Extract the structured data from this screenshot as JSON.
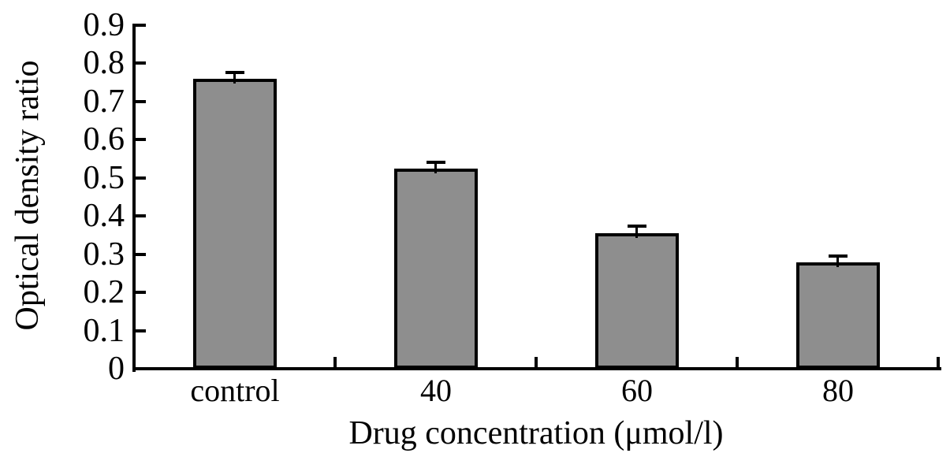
{
  "figure": {
    "background": "#ffffff"
  },
  "chart_data": {
    "type": "bar",
    "title": "",
    "categories": [
      "control",
      "40",
      "60",
      "80"
    ],
    "values": [
      0.76,
      0.525,
      0.355,
      0.278
    ],
    "errors": [
      0.015,
      0.014,
      0.016,
      0.015
    ],
    "xlabel": "Drug concentration (μmol/l)",
    "ylabel": "Optical density ratio",
    "ylim": [
      0,
      0.9
    ],
    "ytick_labels": [
      "0",
      "0.1",
      "0.2",
      "0.3",
      "0.4",
      "0.5",
      "0.6",
      "0.7",
      "0.8",
      "0.9"
    ],
    "grid": false,
    "legend": false,
    "error_bars": "upper caps only",
    "bar_color": "#8e8e8e",
    "bar_border_color": "#000000",
    "error_bar_color": "#000000",
    "axis_color": "#000000",
    "text_color": "#000000"
  }
}
